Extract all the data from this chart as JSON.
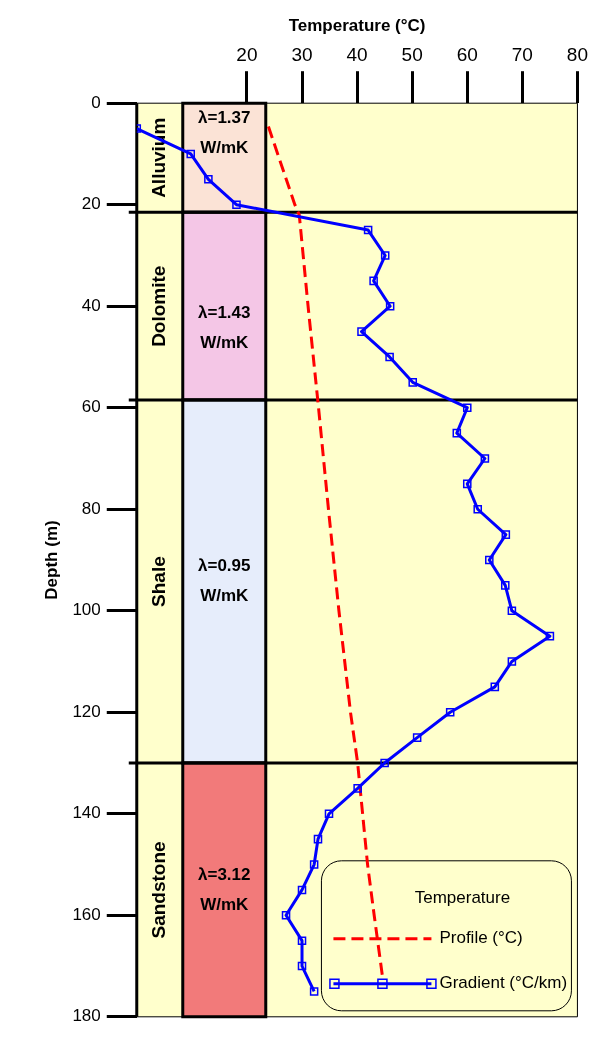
{
  "chart_data": {
    "type": "line",
    "orientation": "horizontal",
    "xlabel": "Temperature (°C)",
    "ylabel": "Depth (m)",
    "xlim": [
      0,
      80
    ],
    "xticks": [
      20,
      30,
      40,
      50,
      60,
      70,
      80
    ],
    "ylim": [
      180,
      0
    ],
    "yticks": [
      0,
      20,
      40,
      60,
      80,
      100,
      120,
      140,
      160,
      180
    ],
    "grid": false,
    "legend": "bottom right",
    "legend_title": "Temperature",
    "series": [
      {
        "name": "Profile (°C)",
        "color": "#ff0000",
        "line_style": "dashed",
        "marker": "none",
        "x": [
          4.6,
          20,
          22,
          40,
          60,
          80,
          100,
          120,
          130,
          140,
          150,
          160,
          172
        ],
        "values": [
          23.9,
          28.7,
          29.5,
          31.1,
          33.0,
          34.8,
          36.7,
          38.8,
          40.1,
          41.0,
          41.9,
          43.1,
          44.6
        ]
      },
      {
        "name": "Gradient (°C/km)",
        "color": "#0000ff",
        "line_style": "solid",
        "marker": "square",
        "x": [
          5,
          10,
          15,
          20,
          25,
          30,
          35,
          40,
          45,
          50,
          55,
          60,
          65,
          70,
          75,
          80,
          85,
          90,
          95,
          100,
          105,
          110,
          115,
          120,
          125,
          130,
          135,
          140,
          145,
          150,
          155,
          160,
          165,
          170,
          175
        ],
        "values": [
          0,
          9.8,
          13.0,
          18.1,
          42.0,
          45.1,
          43.0,
          46.0,
          40.8,
          45.9,
          50.1,
          60.0,
          58.1,
          63.2,
          60.0,
          61.9,
          67.0,
          64.0,
          66.9,
          68.1,
          75.0,
          68.1,
          65.0,
          56.9,
          50.9,
          45.0,
          40.1,
          34.9,
          32.9,
          32.2,
          30.0,
          27.1,
          30.0,
          30.0,
          32.2
        ]
      }
    ],
    "bands": [
      {
        "axis": "y",
        "from": 0,
        "to": 21.5,
        "label": "Alluvium",
        "color": "#fbe3d6"
      },
      {
        "axis": "y",
        "from": 21.5,
        "to": 58.5,
        "label": "Dolomite",
        "color": "#f4c6e6"
      },
      {
        "axis": "y",
        "from": 58.5,
        "to": 130,
        "label": "Shale",
        "color": "#e6edfb"
      },
      {
        "axis": "y",
        "from": 130,
        "to": 180,
        "label": "Sandstone",
        "color": "#f27a7a"
      }
    ],
    "ref_lines": [
      {
        "axis": "y",
        "value": 21.5,
        "label": null,
        "color": "#000000"
      },
      {
        "axis": "y",
        "value": 58.5,
        "label": null,
        "color": "#000000"
      },
      {
        "axis": "y",
        "value": 130,
        "label": null,
        "color": "#000000"
      }
    ],
    "annotations": [
      "λ=1.37 W/mK",
      "λ=1.43 W/mK",
      "λ=0.95 W/mK",
      "λ=3.12 W/mK"
    ]
  }
}
